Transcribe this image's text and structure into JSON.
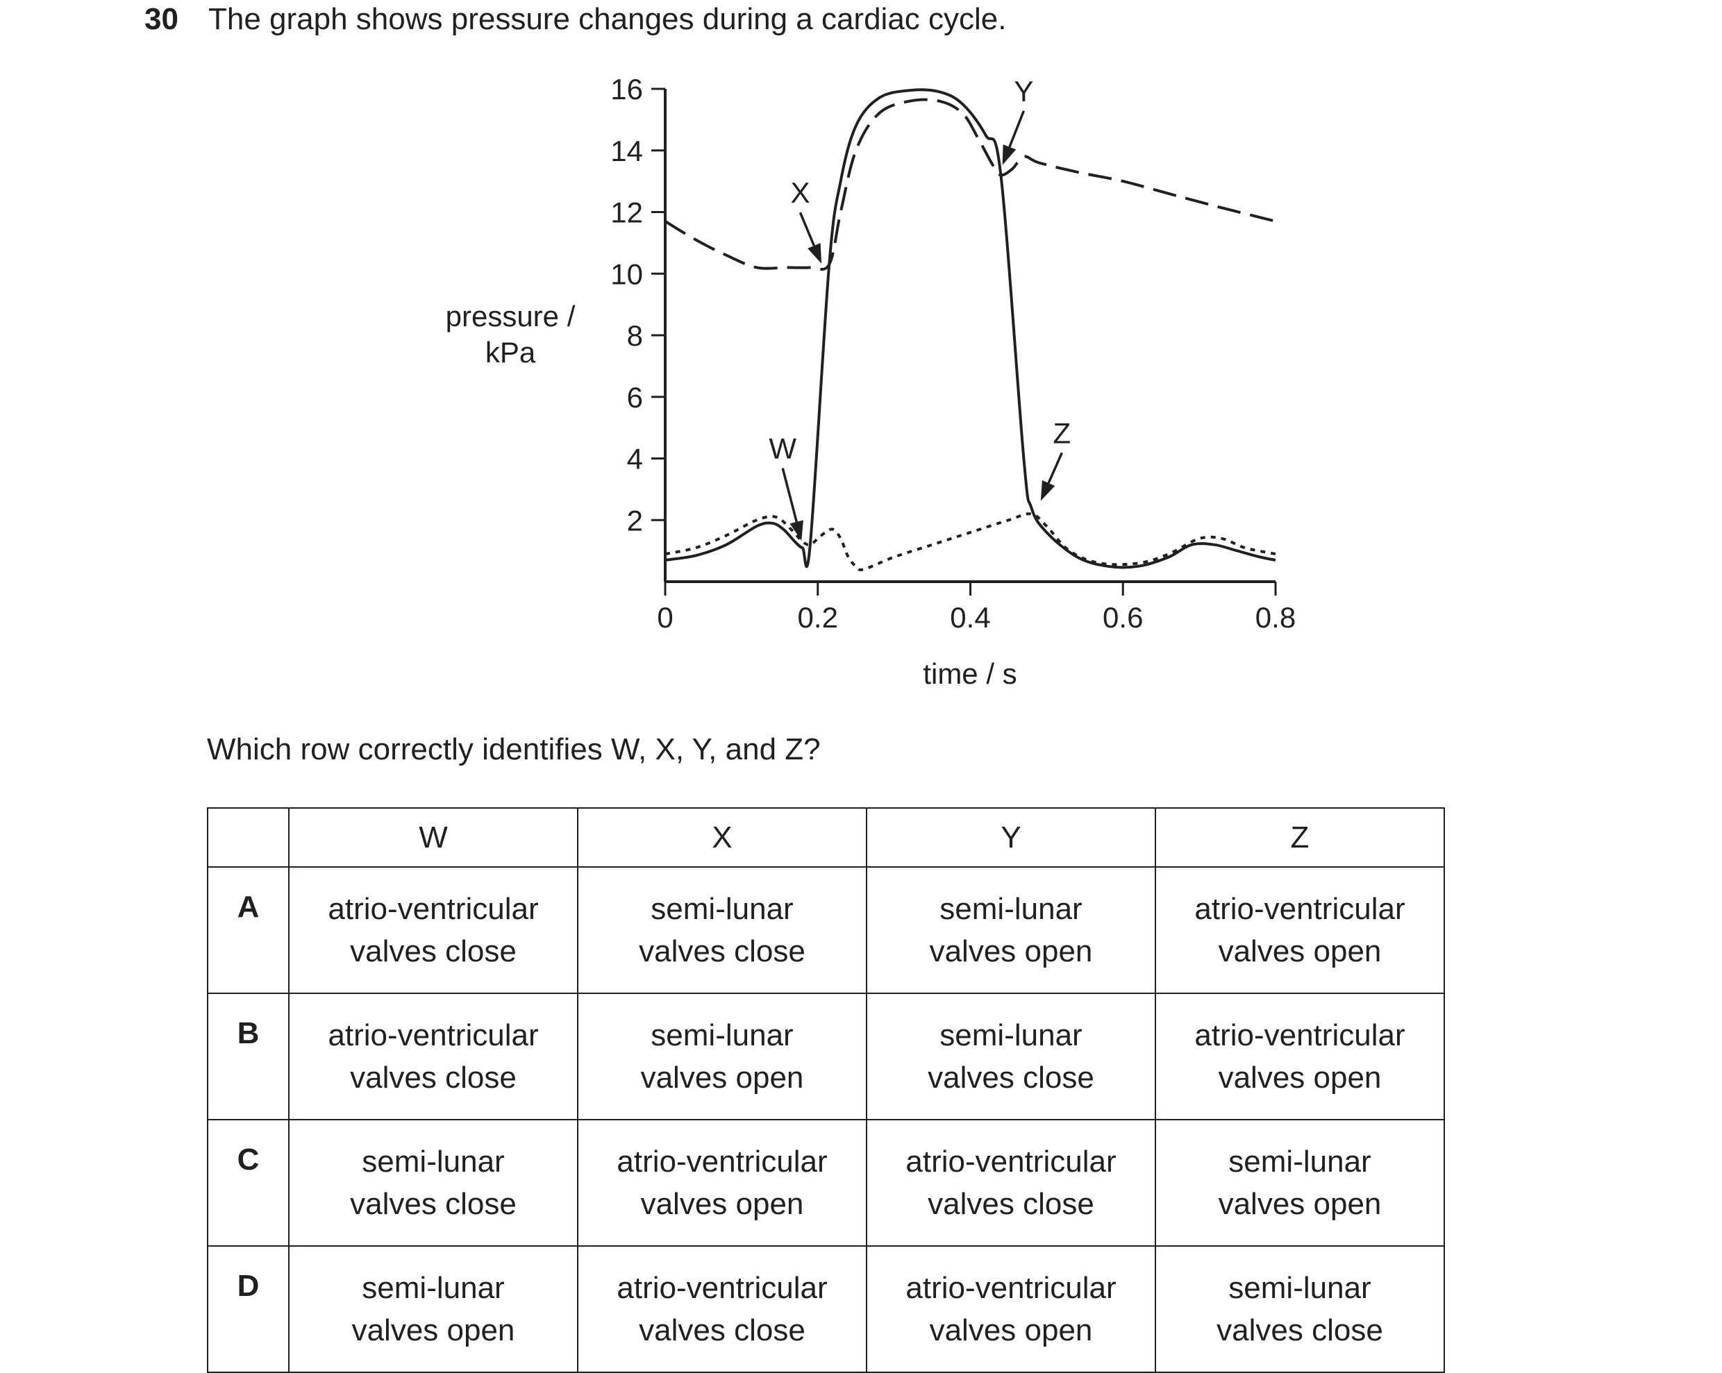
{
  "question": {
    "number": "30",
    "text": "The graph shows pressure changes during a cardiac cycle.",
    "prompt": "Which row correctly identifies W, X, Y, and Z?"
  },
  "chart_data": {
    "type": "line",
    "ylabel_line1": "pressure /",
    "ylabel_line2": "kPa",
    "xlabel": "time / s",
    "xlim": [
      0,
      0.8
    ],
    "ylim": [
      0,
      16
    ],
    "x_ticks": [
      "0",
      "0.2",
      "0.4",
      "0.6",
      "0.8"
    ],
    "x_tick_values": [
      0,
      0.2,
      0.4,
      0.6,
      0.8
    ],
    "y_ticks": [
      "2",
      "4",
      "6",
      "8",
      "10",
      "12",
      "14",
      "16"
    ],
    "y_tick_values": [
      2,
      4,
      6,
      8,
      10,
      12,
      14,
      16
    ],
    "series": [
      {
        "style": "dashed",
        "points": [
          [
            0,
            11.7
          ],
          [
            0.04,
            11.1
          ],
          [
            0.08,
            10.6
          ],
          [
            0.12,
            10.2
          ],
          [
            0.16,
            10.2
          ],
          [
            0.19,
            10.2
          ],
          [
            0.215,
            10.3
          ],
          [
            0.23,
            12.0
          ],
          [
            0.25,
            14.0
          ],
          [
            0.28,
            15.2
          ],
          [
            0.32,
            15.6
          ],
          [
            0.36,
            15.6
          ],
          [
            0.39,
            15.2
          ],
          [
            0.41,
            14.4
          ],
          [
            0.43,
            13.5
          ],
          [
            0.44,
            13.2
          ],
          [
            0.455,
            13.4
          ],
          [
            0.47,
            13.8
          ],
          [
            0.49,
            13.6
          ],
          [
            0.54,
            13.3
          ],
          [
            0.6,
            13.0
          ],
          [
            0.66,
            12.6
          ],
          [
            0.72,
            12.2
          ],
          [
            0.8,
            11.7
          ]
        ]
      },
      {
        "style": "solid",
        "points": [
          [
            0,
            0.7
          ],
          [
            0.04,
            0.85
          ],
          [
            0.08,
            1.2
          ],
          [
            0.12,
            1.8
          ],
          [
            0.14,
            1.9
          ],
          [
            0.155,
            1.7
          ],
          [
            0.17,
            1.3
          ],
          [
            0.18,
            1.1
          ],
          [
            0.19,
            1.2
          ],
          [
            0.215,
            10.3
          ],
          [
            0.23,
            13.0
          ],
          [
            0.25,
            14.8
          ],
          [
            0.28,
            15.7
          ],
          [
            0.32,
            15.95
          ],
          [
            0.36,
            15.9
          ],
          [
            0.39,
            15.5
          ],
          [
            0.42,
            14.5
          ],
          [
            0.44,
            13.2
          ],
          [
            0.47,
            4.0
          ],
          [
            0.48,
            2.4
          ],
          [
            0.5,
            1.6
          ],
          [
            0.54,
            0.8
          ],
          [
            0.58,
            0.5
          ],
          [
            0.62,
            0.5
          ],
          [
            0.66,
            0.8
          ],
          [
            0.69,
            1.2
          ],
          [
            0.72,
            1.2
          ],
          [
            0.75,
            1.0
          ],
          [
            0.78,
            0.8
          ],
          [
            0.8,
            0.7
          ]
        ]
      },
      {
        "style": "dotted",
        "points": [
          [
            0,
            0.9
          ],
          [
            0.04,
            1.1
          ],
          [
            0.08,
            1.5
          ],
          [
            0.12,
            2.0
          ],
          [
            0.145,
            2.1
          ],
          [
            0.165,
            1.7
          ],
          [
            0.18,
            1.3
          ],
          [
            0.19,
            1.2
          ],
          [
            0.2,
            1.4
          ],
          [
            0.21,
            1.6
          ],
          [
            0.22,
            1.7
          ],
          [
            0.23,
            1.4
          ],
          [
            0.24,
            0.8
          ],
          [
            0.25,
            0.5
          ],
          [
            0.26,
            0.4
          ],
          [
            0.3,
            0.8
          ],
          [
            0.35,
            1.2
          ],
          [
            0.4,
            1.6
          ],
          [
            0.45,
            2.0
          ],
          [
            0.48,
            2.2
          ],
          [
            0.5,
            1.8
          ],
          [
            0.53,
            1.0
          ],
          [
            0.57,
            0.6
          ],
          [
            0.62,
            0.6
          ],
          [
            0.66,
            0.9
          ],
          [
            0.7,
            1.4
          ],
          [
            0.73,
            1.4
          ],
          [
            0.76,
            1.1
          ],
          [
            0.8,
            0.9
          ]
        ]
      }
    ],
    "annotations": [
      {
        "label": "W",
        "point": [
          0.18,
          1.2
        ],
        "text_at": [
          0.154,
          4.0
        ]
      },
      {
        "label": "X",
        "point": [
          0.207,
          10.2
        ],
        "text_at": [
          0.177,
          12.3
        ]
      },
      {
        "label": "Y",
        "point": [
          0.44,
          13.4
        ],
        "text_at": [
          0.47,
          15.6
        ]
      },
      {
        "label": "Z",
        "point": [
          0.49,
          2.5
        ],
        "text_at": [
          0.52,
          4.5
        ]
      }
    ]
  },
  "table": {
    "headers": [
      "",
      "W",
      "X",
      "Y",
      "Z"
    ],
    "rows": [
      {
        "label": "A",
        "cells": [
          [
            "atrio-ventricular",
            "valves close"
          ],
          [
            "semi-lunar",
            "valves close"
          ],
          [
            "semi-lunar",
            "valves open"
          ],
          [
            "atrio-ventricular",
            "valves open"
          ]
        ]
      },
      {
        "label": "B",
        "cells": [
          [
            "atrio-ventricular",
            "valves close"
          ],
          [
            "semi-lunar",
            "valves open"
          ],
          [
            "semi-lunar",
            "valves close"
          ],
          [
            "atrio-ventricular",
            "valves open"
          ]
        ]
      },
      {
        "label": "C",
        "cells": [
          [
            "semi-lunar",
            "valves close"
          ],
          [
            "atrio-ventricular",
            "valves open"
          ],
          [
            "atrio-ventricular",
            "valves close"
          ],
          [
            "semi-lunar",
            "valves open"
          ]
        ]
      },
      {
        "label": "D",
        "cells": [
          [
            "semi-lunar",
            "valves open"
          ],
          [
            "atrio-ventricular",
            "valves close"
          ],
          [
            "atrio-ventricular",
            "valves open"
          ],
          [
            "semi-lunar",
            "valves close"
          ]
        ]
      }
    ]
  }
}
